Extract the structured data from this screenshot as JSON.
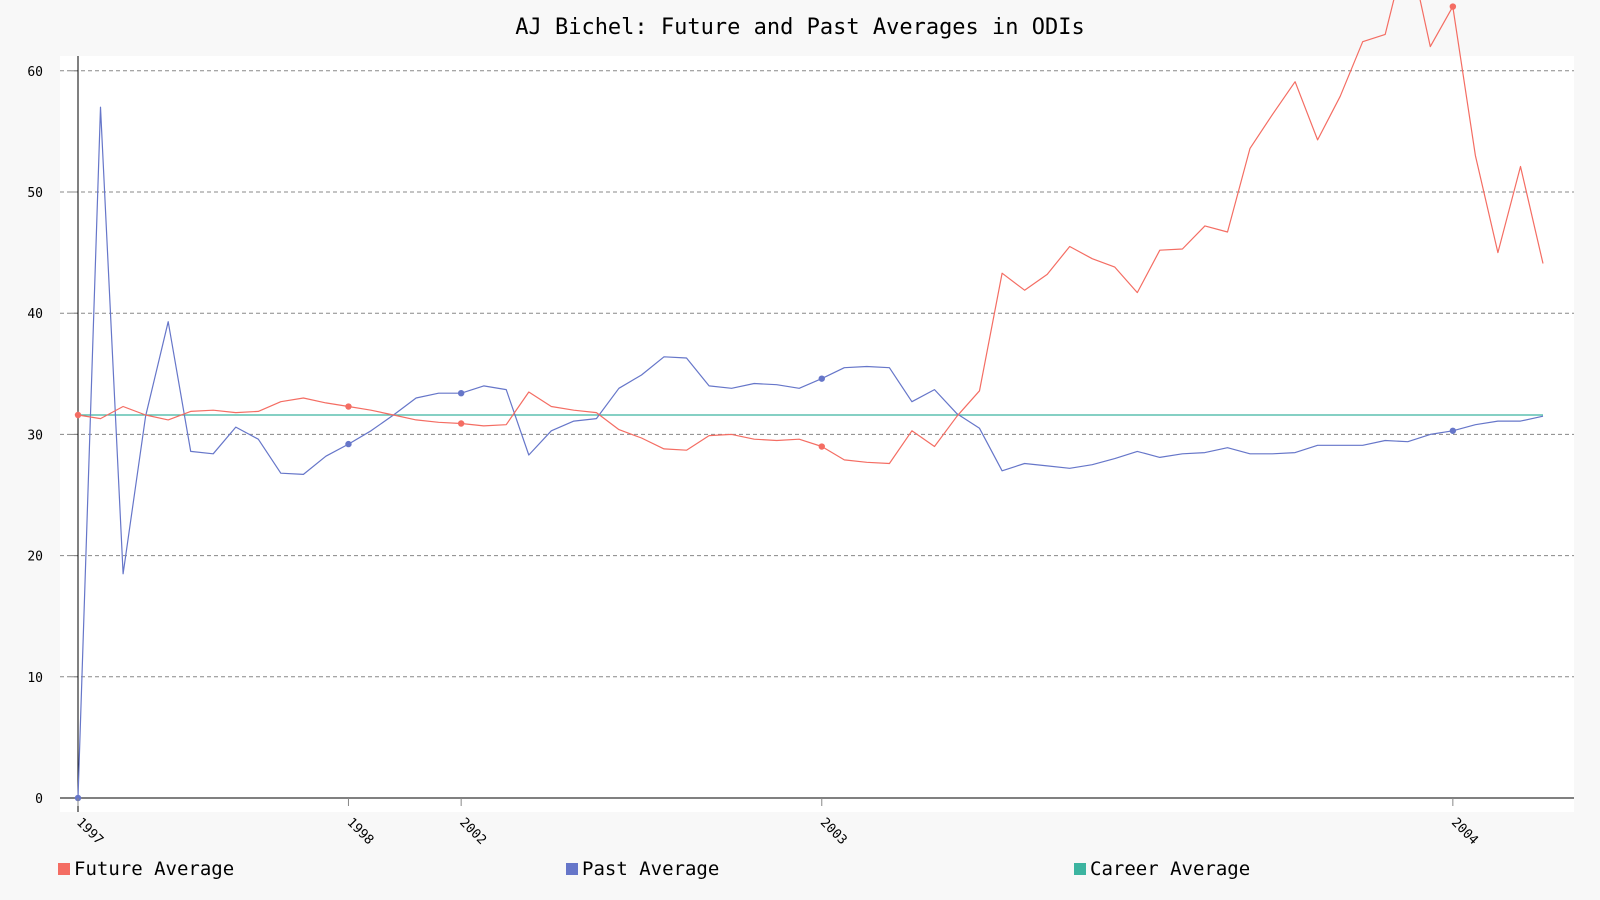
{
  "chart_data": {
    "type": "line",
    "title": "AJ Bichel: Future and Past Averages in ODIs",
    "xlabel": "",
    "ylabel": "",
    "ylim": [
      0,
      61
    ],
    "yticks": [
      0,
      10,
      20,
      30,
      40,
      50,
      60
    ],
    "grid": true,
    "legend_position": "bottom",
    "x_tick_labels": [
      {
        "index": 0,
        "label": "1997"
      },
      {
        "index": 12,
        "label": "1998"
      },
      {
        "index": 17,
        "label": "2002"
      },
      {
        "index": 33,
        "label": "2003"
      },
      {
        "index": 61,
        "label": "2004"
      }
    ],
    "series": [
      {
        "name": "Future Average",
        "color": "#f46d63",
        "values": [
          31.6,
          31.3,
          32.3,
          31.6,
          31.2,
          31.9,
          32.0,
          31.8,
          31.9,
          32.7,
          33.0,
          32.6,
          32.3,
          32.0,
          31.6,
          31.2,
          31.0,
          30.9,
          30.7,
          30.8,
          33.5,
          32.3,
          32.0,
          31.8,
          30.4,
          29.7,
          28.8,
          28.7,
          29.9,
          30.0,
          29.6,
          29.5,
          29.6,
          29.0,
          27.9,
          27.7,
          27.6,
          30.3,
          29.0,
          31.5,
          33.6,
          43.3,
          41.9,
          43.2,
          45.5,
          44.5,
          43.8,
          41.7,
          45.2,
          45.3,
          47.2,
          46.7,
          53.6,
          56.4,
          59.1,
          54.3,
          57.9,
          62.4,
          63.0,
          70.5,
          62.0,
          65.3,
          53.0,
          45.0,
          52.1,
          44.1
        ],
        "markers": [
          0,
          12,
          17,
          33,
          61
        ]
      },
      {
        "name": "Past Average",
        "color": "#6676c9",
        "values": [
          0.0,
          57.0,
          18.5,
          31.5,
          39.3,
          28.6,
          28.4,
          30.6,
          29.6,
          26.8,
          26.7,
          28.2,
          29.2,
          30.3,
          31.6,
          33.0,
          33.4,
          33.4,
          34.0,
          33.7,
          28.3,
          30.3,
          31.1,
          31.3,
          33.8,
          34.9,
          36.4,
          36.3,
          34.0,
          33.8,
          34.2,
          34.1,
          33.8,
          34.6,
          35.5,
          35.6,
          35.5,
          32.7,
          33.7,
          31.7,
          30.5,
          27.0,
          27.6,
          27.4,
          27.2,
          27.5,
          28.0,
          28.6,
          28.1,
          28.4,
          28.5,
          28.9,
          28.4,
          28.4,
          28.5,
          29.1,
          29.1,
          29.1,
          29.5,
          29.4,
          30.0,
          30.3,
          30.8,
          31.1,
          31.1,
          31.5
        ],
        "markers": [
          0,
          12,
          17,
          33,
          61
        ]
      },
      {
        "name": "Career Average",
        "color": "#3cb4a0",
        "values": [
          31.6,
          31.6,
          31.6,
          31.6,
          31.6,
          31.6,
          31.6,
          31.6,
          31.6,
          31.6,
          31.6,
          31.6,
          31.6,
          31.6,
          31.6,
          31.6,
          31.6,
          31.6,
          31.6,
          31.6,
          31.6,
          31.6,
          31.6,
          31.6,
          31.6,
          31.6,
          31.6,
          31.6,
          31.6,
          31.6,
          31.6,
          31.6,
          31.6,
          31.6,
          31.6,
          31.6,
          31.6,
          31.6,
          31.6,
          31.6,
          31.6,
          31.6,
          31.6,
          31.6,
          31.6,
          31.6,
          31.6,
          31.6,
          31.6,
          31.6,
          31.6,
          31.6,
          31.6,
          31.6,
          31.6,
          31.6,
          31.6,
          31.6,
          31.6,
          31.6,
          31.6,
          31.6,
          31.6,
          31.6,
          31.6,
          31.6
        ]
      }
    ]
  },
  "legend": [
    {
      "label": "Future Average",
      "color": "#f46d63"
    },
    {
      "label": "Past Average",
      "color": "#6676c9"
    },
    {
      "label": "Career Average",
      "color": "#3cb4a0"
    }
  ]
}
